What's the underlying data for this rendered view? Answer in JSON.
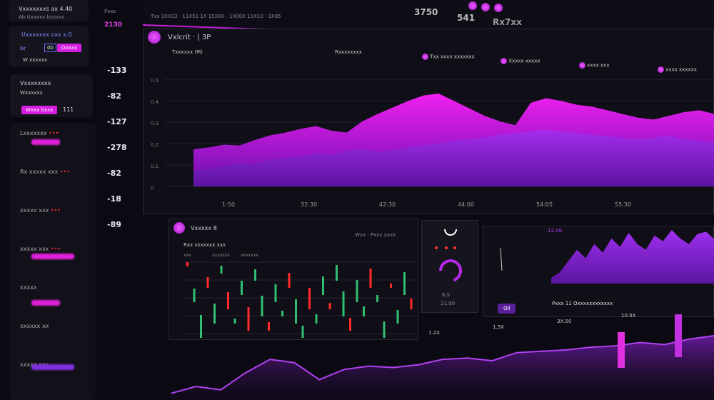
{
  "sidebar": {
    "card1": {
      "title": "Vxxxxxxxs ax 4.40",
      "subtitle": "Ab Uxxxxx bxxxxs"
    },
    "card2": {
      "title": "Uxxxxxxx oxx x.0",
      "label": "Nr",
      "field": "0b",
      "button": "Oxxxx",
      "note": "W xxxxxx"
    },
    "card3": {
      "title": "Vxxxxxxxx",
      "subtitle": "Wxxxxxx",
      "button": "Wxxx bxxx",
      "count": "111"
    },
    "list": [
      {
        "label": "Lxxxxxxx",
        "status": "•••"
      },
      {
        "label": "Rx xxxxx xxx",
        "status": "•••"
      },
      {
        "label": "xxxxx xxx",
        "status": "•••"
      },
      {
        "label": "xxxxx xxx",
        "status": "•••"
      },
      {
        "label": "xxxxx",
        "status": ""
      },
      {
        "label": "xxxxxx xx",
        "status": ""
      },
      {
        "label": "xxxxx xxx",
        "status": ""
      }
    ]
  },
  "ticker_column": {
    "header": "Pxxs",
    "top": "2130",
    "values": [
      "-133",
      "-82",
      "-127",
      "-278",
      "-82",
      "-18",
      "-89"
    ]
  },
  "top_bar": {
    "values": [
      "3750",
      "541",
      "Rx7xx"
    ]
  },
  "main_chart": {
    "title": "Vxlcrit · | 3P",
    "subtitle": "Txxxxxx (M)",
    "right_label": "Rxxxxxxxx",
    "breadcrumb": "Txx 3XX33 · 11X51 1X 15X00 · 1X00X 11X10 · 3X85",
    "legend": [
      "Txx xxxx xxxxxxx",
      "Xxxxx xxxxx",
      "xxxx xxx",
      "xxxx xxxxxx"
    ],
    "x_ticks": [
      "1:50",
      "32:30",
      "42:30",
      "44:00",
      "54:05",
      "55:30"
    ],
    "y_ticks": [
      "0.5",
      "0.4",
      "0.3",
      "0.2",
      "0.1",
      "0"
    ],
    "accent": "#e020e8",
    "series_front": [
      40,
      42,
      45,
      44,
      50,
      55,
      58,
      62,
      65,
      60,
      58,
      70,
      78,
      85,
      92,
      98,
      100,
      92,
      84,
      76,
      70,
      66,
      90,
      95,
      92,
      88,
      86,
      82,
      78,
      74,
      72,
      76,
      80,
      82,
      78
    ],
    "series_back": [
      20,
      22,
      26,
      30,
      28,
      34,
      36,
      38,
      42,
      40,
      45,
      48,
      44,
      46,
      50,
      52,
      55,
      58,
      60,
      62,
      66,
      68,
      70,
      72,
      70,
      68,
      66,
      64,
      62,
      60,
      62,
      64,
      60,
      58,
      56
    ]
  },
  "candles_panel": {
    "title": "Vxxxxx 8",
    "subtitle": "Rxx xxxxxxx xxx",
    "legend": [
      "xxx",
      "xxxxxxx",
      "xxxxxxx"
    ],
    "controls": "Wxx · Pxxx xxxx"
  },
  "gauge": {
    "values": [
      "6.5",
      "21.00"
    ],
    "level": 0.7
  },
  "mini_chart": {
    "label": "12.00",
    "button": "Oll",
    "caption": "Pxxx 11 Oxxxxxxxxxxxx",
    "series": [
      10,
      20,
      40,
      60,
      45,
      70,
      55,
      80,
      65,
      90,
      70,
      60,
      85,
      75,
      95,
      80,
      70,
      88,
      92,
      78
    ]
  },
  "bottom_chart": {
    "labels": [
      "1.2X",
      "1.3X",
      "3X.50",
      "10.0X"
    ],
    "series": [
      10,
      20,
      15,
      40,
      60,
      55,
      30,
      45,
      50,
      48,
      52,
      60,
      62,
      58,
      70,
      72,
      74,
      78,
      80,
      85,
      82,
      90,
      95
    ]
  }
}
